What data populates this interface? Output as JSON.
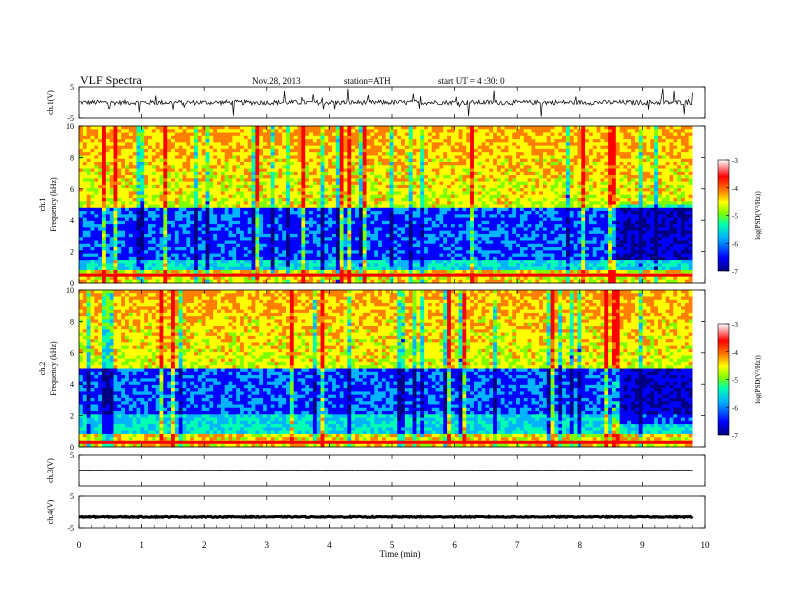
{
  "header": {
    "title": "VLF Spectra",
    "date": "Nov.28, 2013",
    "station": "station=ATH",
    "start": "start UT =  4 :30: 0"
  },
  "chart_data": {
    "type": "heatmap",
    "x_axis": {
      "label": "Time (min)",
      "range": [
        0,
        10
      ],
      "ticks": [
        "0",
        "1",
        "2",
        "3",
        "4",
        "5",
        "6",
        "7",
        "8",
        "9",
        "10"
      ]
    },
    "panels": [
      {
        "id": "ch1-wave",
        "type": "line",
        "ylabel": "ch.1(V)",
        "ylim": [
          -5,
          5
        ],
        "ticks": [
          "5",
          "-5"
        ],
        "baseline": 0,
        "noise_amplitude": 0.8
      },
      {
        "id": "ch1-spec",
        "type": "heatmap",
        "ylabel": "ch.1\nFrequency (kHz)",
        "ylim": [
          0,
          10
        ],
        "ticks": [
          "0",
          "2",
          "4",
          "6",
          "8",
          "10"
        ],
        "colorbar": {
          "label": "log(PSD(V²/Hz))",
          "range": [
            -7,
            -3
          ],
          "ticks": [
            "-3",
            "-4",
            "-5",
            "-6",
            "-7"
          ]
        },
        "features": {
          "quiet_band_khz": [
            1.5,
            4.8
          ],
          "quiet_region_start_min": 8.5,
          "quiet_region_end_min": 9.8,
          "strong_line_khz": 0.5
        }
      },
      {
        "id": "ch2-spec",
        "type": "heatmap",
        "ylabel": "ch.2\nFrequency (kHz)",
        "ylim": [
          0,
          10
        ],
        "ticks": [
          "0",
          "2",
          "4",
          "6",
          "8",
          "10"
        ],
        "colorbar": {
          "label": "log(PSD(V²/Hz))",
          "range": [
            -7,
            -3
          ],
          "ticks": [
            "-3",
            "-4",
            "-5",
            "-6",
            "-7"
          ]
        },
        "features": {
          "quiet_band_khz": [
            2.0,
            5.0
          ],
          "quiet_region_start_min": 8.5,
          "quiet_region_end_min": 9.8,
          "strong_line_khz": 0.3
        }
      },
      {
        "id": "ch3-wave",
        "type": "line",
        "ylabel": "ch.3(V)",
        "ylim": [
          -5,
          5
        ],
        "ticks": [
          "5"
        ],
        "baseline": 0,
        "noise_amplitude": 0.05
      },
      {
        "id": "ch4-wave",
        "type": "line",
        "ylabel": "ch.4(V)",
        "ylim": [
          -5,
          5
        ],
        "ticks": [
          "5",
          "-5"
        ],
        "baseline": -1.5,
        "noise_amplitude": 0.15
      }
    ],
    "data_end_min": 9.8,
    "colormap": [
      "#000080",
      "#0000ff",
      "#00b4ff",
      "#00ffb0",
      "#80ff00",
      "#ffff00",
      "#ff8000",
      "#ff0000",
      "#ffffff"
    ]
  }
}
